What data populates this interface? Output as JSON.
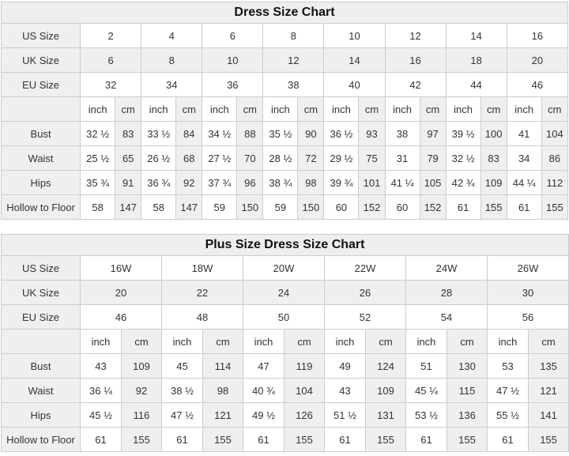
{
  "colors": {
    "grid_line": "#cccccc",
    "shaded_cell": "#efefef",
    "white_cell": "#ffffff",
    "title_background": "#eeeeee",
    "text": "#333333"
  },
  "tables": [
    {
      "id": "standard",
      "title": "Dress Size Chart",
      "unit_labels": {
        "inch": "inch",
        "cm": "cm"
      },
      "size_rows": [
        {
          "label": "US Size",
          "values": [
            "2",
            "4",
            "6",
            "8",
            "10",
            "12",
            "14",
            "16"
          ]
        },
        {
          "label": "UK Size",
          "values": [
            "6",
            "8",
            "10",
            "12",
            "14",
            "16",
            "18",
            "20"
          ]
        },
        {
          "label": "EU Size",
          "values": [
            "32",
            "34",
            "36",
            "38",
            "40",
            "42",
            "44",
            "46"
          ]
        }
      ],
      "measurement_rows": [
        {
          "label": "Bust",
          "inch": [
            "32 ½",
            "33 ½",
            "34 ½",
            "35 ½",
            "36 ½",
            "38",
            "39 ½",
            "41"
          ],
          "cm": [
            "83",
            "84",
            "88",
            "90",
            "93",
            "97",
            "100",
            "104"
          ]
        },
        {
          "label": "Waist",
          "inch": [
            "25 ½",
            "26 ½",
            "27 ½",
            "28 ½",
            "29 ½",
            "31",
            "32 ½",
            "34"
          ],
          "cm": [
            "65",
            "68",
            "70",
            "72",
            "75",
            "79",
            "83",
            "86"
          ]
        },
        {
          "label": "Hips",
          "inch": [
            "35 ¾",
            "36 ¾",
            "37 ¾",
            "38 ¾",
            "39 ¾",
            "41 ¼",
            "42 ¾",
            "44 ¼"
          ],
          "cm": [
            "91",
            "92",
            "96",
            "98",
            "101",
            "105",
            "109",
            "112"
          ]
        },
        {
          "label": "Hollow to Floor",
          "inch": [
            "58",
            "58",
            "59",
            "59",
            "60",
            "60",
            "61",
            "61"
          ],
          "cm": [
            "147",
            "147",
            "150",
            "150",
            "152",
            "152",
            "155",
            "155"
          ]
        }
      ]
    },
    {
      "id": "plus",
      "title": "Plus Size Dress Size Chart",
      "unit_labels": {
        "inch": "inch",
        "cm": "cm"
      },
      "size_rows": [
        {
          "label": "US Size",
          "values": [
            "16W",
            "18W",
            "20W",
            "22W",
            "24W",
            "26W"
          ]
        },
        {
          "label": "UK Size",
          "values": [
            "20",
            "22",
            "24",
            "26",
            "28",
            "30"
          ]
        },
        {
          "label": "EU Size",
          "values": [
            "46",
            "48",
            "50",
            "52",
            "54",
            "56"
          ]
        }
      ],
      "measurement_rows": [
        {
          "label": "Bust",
          "inch": [
            "43",
            "45",
            "47",
            "49",
            "51",
            "53"
          ],
          "cm": [
            "109",
            "114",
            "119",
            "124",
            "130",
            "135"
          ]
        },
        {
          "label": "Waist",
          "inch": [
            "36 ¼",
            "38 ½",
            "40 ¾",
            "43",
            "45 ¼",
            "47 ½"
          ],
          "cm": [
            "92",
            "98",
            "104",
            "109",
            "115",
            "121"
          ]
        },
        {
          "label": "Hips",
          "inch": [
            "45 ½",
            "47 ½",
            "49 ½",
            "51 ½",
            "53 ½",
            "55 ½"
          ],
          "cm": [
            "116",
            "121",
            "126",
            "131",
            "136",
            "141"
          ]
        },
        {
          "label": "Hollow to Floor",
          "inch": [
            "61",
            "61",
            "61",
            "61",
            "61",
            "61"
          ],
          "cm": [
            "155",
            "155",
            "155",
            "155",
            "155",
            "155"
          ]
        }
      ]
    }
  ]
}
